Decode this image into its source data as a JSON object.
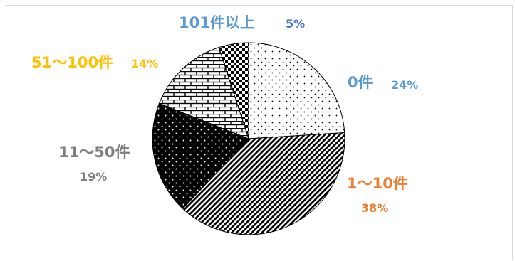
{
  "chart_data": {
    "type": "pie",
    "title": "",
    "categories": [
      "0件",
      "1～10件",
      "11～50件",
      "51～100件",
      "101件以上"
    ],
    "values": [
      24,
      38,
      19,
      14,
      5
    ],
    "value_labels": [
      "24%",
      "38%",
      "19%",
      "14%",
      "5%"
    ],
    "label_colors": [
      "#5b9bd5",
      "#ed7d31",
      "#7f7f7f",
      "#ffc000",
      "#5b9bd5"
    ],
    "fill_patterns": [
      "dots-white",
      "diagonal-stripes",
      "dots-black",
      "brick",
      "checkerboard"
    ],
    "legend": "none"
  }
}
